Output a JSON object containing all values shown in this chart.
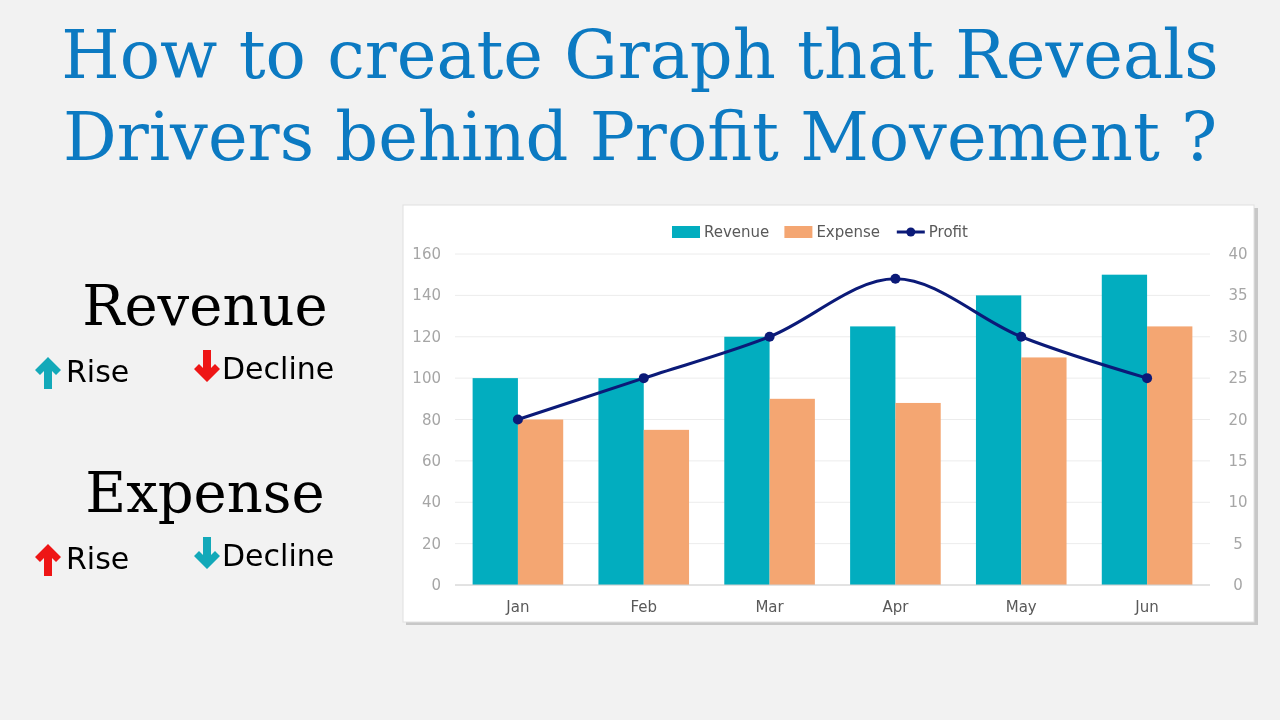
{
  "chart_data": {
    "type": "bar",
    "title": "How to create Graph that Reveals Drivers behind Profit Movement ?",
    "categories": [
      "Jan",
      "Feb",
      "Mar",
      "Apr",
      "May",
      "Jun"
    ],
    "series": [
      {
        "name": "Revenue",
        "color": "#02adbf",
        "values": [
          100,
          100,
          120,
          125,
          140,
          150
        ]
      },
      {
        "name": "Expense",
        "color": "#f4a672",
        "values": [
          80,
          75,
          90,
          88,
          110,
          125
        ]
      },
      {
        "name": "Profit",
        "type": "line",
        "axis": "y2",
        "color": "#0b1a78",
        "values": [
          20,
          25,
          30,
          37,
          30,
          25
        ]
      }
    ],
    "ylim": [
      0,
      160
    ],
    "yticks": [
      0,
      20,
      40,
      60,
      80,
      100,
      120,
      140,
      160
    ],
    "y2lim": [
      0,
      40
    ],
    "y2ticks": [
      0,
      5,
      10,
      15,
      20,
      25,
      30,
      35,
      40
    ],
    "grid": "y",
    "legend": "top",
    "marker": "circle",
    "annotations": [
      "Revenue",
      "Rise",
      "Decline",
      "Expense",
      "Rise",
      "Decline"
    ]
  }
}
